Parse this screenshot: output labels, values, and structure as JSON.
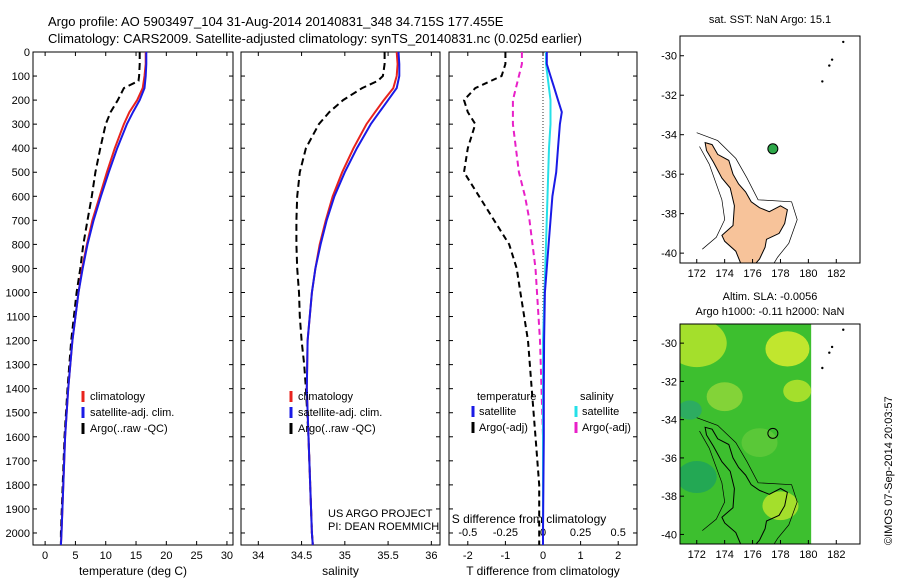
{
  "header": {
    "line1": "Argo profile: AO 5903497_104 31-Aug-2014 20140831_348 34.715S 177.455E",
    "line2": "Climatology: CARS2009. Satellite-adjusted climatology: synTS_20140831.nc (0.025d earlier)"
  },
  "colors": {
    "climatology": "#e8231d",
    "satellite": "#1a1ae6",
    "argo": "#000000",
    "salinity_sat": "#25e0e8",
    "salinity_argo": "#e820c8",
    "land": "#f7c39a",
    "ocean_sla": "#3dbf2f",
    "float_marker": "#2ea84a"
  },
  "chart_data": [
    {
      "type": "line",
      "name": "temperature-panel",
      "xlabel": "temperature (deg C)",
      "ylabel": "",
      "xlim": [
        -2,
        31
      ],
      "ylim": [
        2050,
        0
      ],
      "xticks": [
        0,
        5,
        10,
        15,
        20,
        25,
        30
      ],
      "yticks": [
        0,
        100,
        200,
        300,
        400,
        500,
        600,
        700,
        800,
        900,
        1000,
        1100,
        1200,
        1300,
        1400,
        1500,
        1600,
        1700,
        1800,
        1900,
        2000
      ],
      "legend": [
        "climatology",
        "satellite-adj. clim.",
        "Argo(..raw -QC)"
      ],
      "series": [
        {
          "name": "climatology",
          "depth": [
            0,
            50,
            100,
            150,
            200,
            250,
            300,
            400,
            500,
            600,
            700,
            800,
            900,
            1000,
            1200,
            1400,
            1600,
            1800,
            2000,
            2050
          ],
          "values": [
            16.6,
            16.6,
            16.4,
            16.1,
            15.2,
            13.9,
            13.0,
            11.5,
            10.2,
            9.0,
            7.8,
            6.9,
            6.1,
            5.5,
            4.5,
            3.8,
            3.3,
            3.0,
            2.7,
            2.6
          ]
        },
        {
          "name": "satellite-adj. clim.",
          "depth": [
            0,
            50,
            100,
            150,
            200,
            250,
            300,
            400,
            500,
            600,
            700,
            800,
            900,
            1000,
            1200,
            1400,
            1600,
            1800,
            2000,
            2050
          ],
          "values": [
            16.7,
            16.7,
            16.6,
            16.4,
            15.6,
            14.5,
            13.5,
            11.9,
            10.5,
            9.2,
            8.0,
            7.0,
            6.2,
            5.5,
            4.5,
            3.8,
            3.3,
            3.0,
            2.7,
            2.6
          ]
        },
        {
          "name": "Argo(..raw -QC)",
          "depth": [
            0,
            50,
            100,
            120,
            150,
            200,
            250,
            300,
            400,
            500,
            600,
            700,
            800,
            900,
            1000,
            1200,
            1400,
            1600,
            1800,
            2000,
            2050
          ],
          "values": [
            15.6,
            15.6,
            15.5,
            15.4,
            13.0,
            12.0,
            10.8,
            10.0,
            9.1,
            8.3,
            7.7,
            7.0,
            6.3,
            5.8,
            5.2,
            4.3,
            3.7,
            3.2,
            2.9,
            2.6,
            2.6
          ]
        }
      ]
    },
    {
      "type": "line",
      "name": "salinity-panel",
      "xlabel": "salinity",
      "ylabel": "",
      "xlim": [
        33.8,
        36.1
      ],
      "ylim": [
        2050,
        0
      ],
      "xticks": [
        "34",
        "34.5",
        "35",
        "35.5",
        "36"
      ],
      "legend": [
        "climatology",
        "satellite-adj. clim.",
        "Argo(..raw -QC)"
      ],
      "annotation": [
        "US ARGO PROJECT",
        "PI: DEAN ROEMMICH"
      ],
      "series": [
        {
          "name": "climatology",
          "depth": [
            0,
            50,
            100,
            150,
            200,
            250,
            300,
            400,
            500,
            600,
            700,
            800,
            900,
            1000,
            1200,
            1400,
            1600,
            1800,
            2000,
            2050
          ],
          "values": [
            35.6,
            35.61,
            35.6,
            35.56,
            35.45,
            35.35,
            35.25,
            35.1,
            34.97,
            34.86,
            34.78,
            34.71,
            34.66,
            34.62,
            34.57,
            34.56,
            34.58,
            34.6,
            34.62,
            34.63
          ]
        },
        {
          "name": "satellite-adj. clim.",
          "depth": [
            0,
            50,
            100,
            150,
            200,
            250,
            300,
            400,
            500,
            600,
            700,
            800,
            900,
            1000,
            1200,
            1400,
            1600,
            1800,
            2000,
            2050
          ],
          "values": [
            35.62,
            35.63,
            35.63,
            35.6,
            35.5,
            35.4,
            35.3,
            35.14,
            35.0,
            34.88,
            34.79,
            34.72,
            34.66,
            34.62,
            34.57,
            34.56,
            34.58,
            34.6,
            34.62,
            34.63
          ]
        },
        {
          "name": "Argo(..raw -QC)",
          "depth": [
            0,
            50,
            100,
            120,
            150,
            200,
            250,
            300,
            400,
            500,
            600,
            700,
            800,
            900,
            1000,
            1100,
            1200,
            1300,
            1400,
            1600,
            1800,
            2000,
            2050
          ],
          "values": [
            35.46,
            35.46,
            35.44,
            35.38,
            35.2,
            34.98,
            34.82,
            34.7,
            34.55,
            34.48,
            34.45,
            34.44,
            34.44,
            34.45,
            34.47,
            34.48,
            34.5,
            34.53,
            34.55,
            34.58,
            34.6,
            34.62,
            34.63
          ]
        }
      ]
    },
    {
      "type": "line",
      "name": "difference-panel",
      "xlabel": "T difference from climatology",
      "xlabel_top": "S difference from climatology",
      "xlim": [
        -2.5,
        2.5
      ],
      "ylim": [
        2050,
        0
      ],
      "xticks": [
        "-2",
        "-1",
        "0",
        "1",
        "2"
      ],
      "xticks_top": [
        "-0.5",
        "-0.25",
        "0",
        "0.25",
        "0.5"
      ],
      "legend_title_t": "temperature",
      "legend_title_s": "salinity",
      "legend": [
        "satellite",
        "Argo(-adj)",
        "satellite",
        "Argo(-adj)"
      ],
      "series": [
        {
          "name": "satellite",
          "group": "temperature",
          "depth": [
            0,
            50,
            100,
            150,
            200,
            250,
            300,
            400,
            500,
            600,
            800,
            1000,
            1200,
            1400,
            1600,
            1800,
            2000,
            2050
          ],
          "values": [
            0.1,
            0.1,
            0.2,
            0.3,
            0.4,
            0.5,
            0.45,
            0.4,
            0.35,
            0.25,
            0.15,
            0.05,
            0.03,
            0.02,
            0.02,
            0.01,
            0.0,
            0.0
          ]
        },
        {
          "name": "Argo(-adj)",
          "group": "temperature",
          "depth": [
            0,
            50,
            100,
            150,
            200,
            250,
            300,
            400,
            500,
            600,
            700,
            800,
            900,
            1000,
            1100,
            1200,
            1400,
            1600,
            1800,
            2000,
            2050
          ],
          "values": [
            -1.0,
            -1.0,
            -1.1,
            -1.8,
            -2.1,
            -2.0,
            -1.8,
            -2.0,
            -2.1,
            -1.7,
            -1.3,
            -0.9,
            -0.7,
            -0.6,
            -0.5,
            -0.4,
            -0.3,
            -0.2,
            -0.1,
            -0.1,
            -0.1
          ]
        },
        {
          "name": "satellite",
          "group": "salinity",
          "depth": [
            0,
            50,
            100,
            200,
            300,
            400,
            600,
            800,
            1000,
            1200,
            1400,
            1600,
            1800,
            2000,
            2050
          ],
          "values": [
            0.02,
            0.02,
            0.03,
            0.05,
            0.05,
            0.04,
            0.03,
            0.02,
            0.01,
            0.0,
            0.0,
            0.0,
            0.0,
            0.0,
            0.0
          ]
        },
        {
          "name": "Argo(-adj)",
          "group": "salinity",
          "depth": [
            0,
            50,
            100,
            150,
            200,
            300,
            400,
            500,
            600,
            700,
            800,
            900,
            1000,
            1100,
            1200,
            1400,
            1600,
            1800,
            2000,
            2050
          ],
          "values": [
            -0.14,
            -0.14,
            -0.16,
            -0.18,
            -0.2,
            -0.2,
            -0.18,
            -0.16,
            -0.12,
            -0.09,
            -0.07,
            -0.05,
            -0.04,
            -0.03,
            -0.02,
            -0.01,
            0.0,
            0.0,
            0.0,
            0.0
          ]
        }
      ]
    }
  ],
  "maps": {
    "sst": {
      "title": "sat. SST: NaN Argo: 15.1",
      "xticks": [
        "172",
        "174",
        "176",
        "178",
        "180",
        "182"
      ],
      "yticks": [
        "-30",
        "-32",
        "-34",
        "-36",
        "-38",
        "-40"
      ],
      "marker": {
        "lon": 177.455,
        "lat": -34.715
      }
    },
    "sla": {
      "title_line1": "Altim. SLA: -0.0056",
      "title_line2": "Argo h1000: -0.11 h2000: NaN",
      "xticks": [
        "172",
        "174",
        "176",
        "178",
        "180",
        "182"
      ],
      "yticks": [
        "-30",
        "-32",
        "-34",
        "-36",
        "-38",
        "-40"
      ],
      "marker": {
        "lon": 177.455,
        "lat": -34.715
      }
    }
  },
  "side_stamp": "©IMOS 07-Sep-2014 20:03:57"
}
